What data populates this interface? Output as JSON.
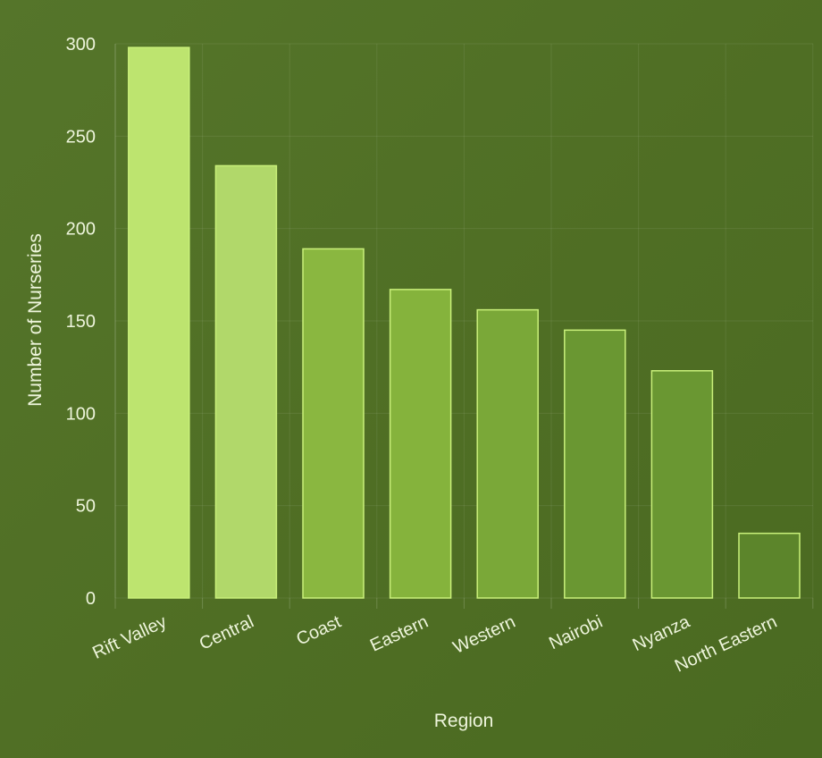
{
  "chart_data": {
    "type": "bar",
    "title": "",
    "xlabel": "Region",
    "ylabel": "Number of Nurseries",
    "categories": [
      "Rift Valley",
      "Central",
      "Coast",
      "Eastern",
      "Western",
      "Nairobi",
      "Nyanza",
      "North Eastern"
    ],
    "values": [
      298,
      234,
      189,
      167,
      156,
      145,
      123,
      35
    ],
    "ylim": [
      0,
      300
    ],
    "yticks": [
      0,
      50,
      100,
      150,
      200,
      250,
      300
    ],
    "grid": true,
    "legend": "none",
    "colors": {
      "bars": [
        "#bde46f",
        "#b1d86a",
        "#8ab740",
        "#85b33c",
        "#7aa838",
        "#6a9732",
        "#6a9732",
        "#5c852b"
      ],
      "bar_outline": "#c9f07a",
      "background": "#506e24",
      "text": "#eef5dc"
    }
  }
}
